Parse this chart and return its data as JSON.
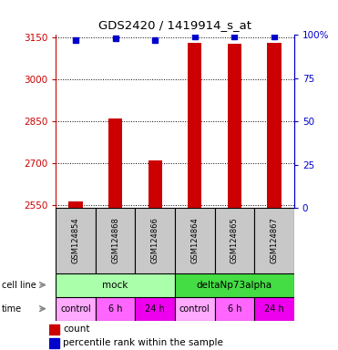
{
  "title": "GDS2420 / 1419914_s_at",
  "samples": [
    "GSM124854",
    "GSM124868",
    "GSM124866",
    "GSM124864",
    "GSM124865",
    "GSM124867"
  ],
  "count_values": [
    2563,
    2862,
    2710,
    3133,
    3130,
    3132
  ],
  "percentile_values": [
    97,
    98,
    97,
    99,
    99,
    99
  ],
  "ylim_left": [
    2540,
    3160
  ],
  "ylim_right": [
    0,
    100
  ],
  "yticks_left": [
    2550,
    2700,
    2850,
    3000,
    3150
  ],
  "yticks_right": [
    0,
    25,
    50,
    75,
    100
  ],
  "ytick_labels_left": [
    "2550",
    "2700",
    "2850",
    "3000",
    "3150"
  ],
  "ytick_labels_right": [
    "0",
    "25",
    "50",
    "75",
    "100%"
  ],
  "cell_line_groups": [
    {
      "label": "mock",
      "start": 0,
      "end": 3,
      "color": "#AAFFAA"
    },
    {
      "label": "deltaNp73alpha",
      "start": 3,
      "end": 6,
      "color": "#44DD44"
    }
  ],
  "time_groups": [
    {
      "label": "control",
      "start": 0,
      "end": 1,
      "color": "#FFAAFF"
    },
    {
      "label": "6 h",
      "start": 1,
      "end": 2,
      "color": "#FF66FF"
    },
    {
      "label": "24 h",
      "start": 2,
      "end": 3,
      "color": "#EE00EE"
    },
    {
      "label": "control",
      "start": 3,
      "end": 4,
      "color": "#FFAAFF"
    },
    {
      "label": "6 h",
      "start": 4,
      "end": 5,
      "color": "#FF66FF"
    },
    {
      "label": "24 h",
      "start": 5,
      "end": 6,
      "color": "#EE00EE"
    }
  ],
  "bar_color": "#CC0000",
  "dot_color": "#0000CC",
  "bar_width": 0.35,
  "sample_box_color": "#C8C8C8",
  "left_axis_color": "#CC0000",
  "right_axis_color": "#0000CC",
  "fig_width": 3.71,
  "fig_height": 3.84,
  "dpi": 100
}
